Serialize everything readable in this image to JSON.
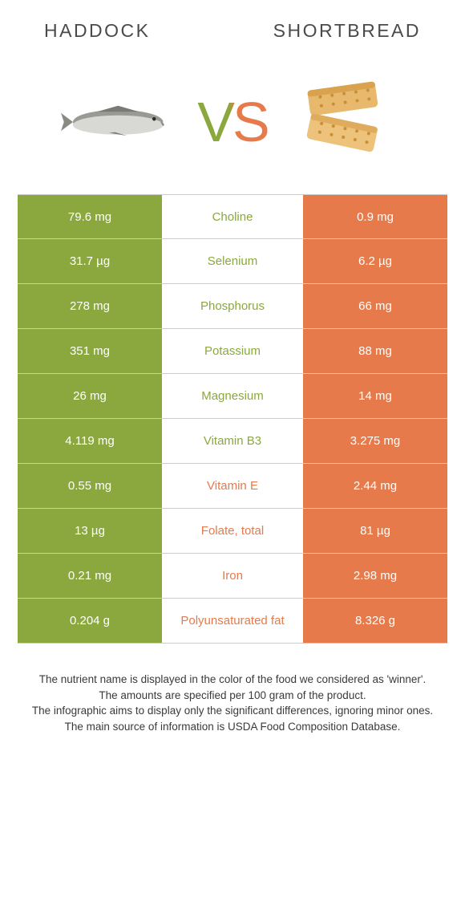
{
  "colors": {
    "left_bg": "#8aa83d",
    "right_bg": "#e67a4a",
    "mid_left_text": "#8aa83d",
    "mid_right_text": "#e67a4a",
    "cell_text": "#ffffff",
    "border": "#cccccc"
  },
  "header": {
    "left_title": "Haddock",
    "right_title": "Shortbread",
    "vs": "VS"
  },
  "rows": [
    {
      "left": "79.6 mg",
      "mid": "Choline",
      "right": "0.9 mg",
      "winner": "left"
    },
    {
      "left": "31.7 µg",
      "mid": "Selenium",
      "right": "6.2 µg",
      "winner": "left"
    },
    {
      "left": "278 mg",
      "mid": "Phosphorus",
      "right": "66 mg",
      "winner": "left"
    },
    {
      "left": "351 mg",
      "mid": "Potassium",
      "right": "88 mg",
      "winner": "left"
    },
    {
      "left": "26 mg",
      "mid": "Magnesium",
      "right": "14 mg",
      "winner": "left"
    },
    {
      "left": "4.119 mg",
      "mid": "Vitamin B3",
      "right": "3.275 mg",
      "winner": "left"
    },
    {
      "left": "0.55 mg",
      "mid": "Vitamin E",
      "right": "2.44 mg",
      "winner": "right"
    },
    {
      "left": "13 µg",
      "mid": "Folate, total",
      "right": "81 µg",
      "winner": "right"
    },
    {
      "left": "0.21 mg",
      "mid": "Iron",
      "right": "2.98 mg",
      "winner": "right"
    },
    {
      "left": "0.204 g",
      "mid": "Polyunsaturated fat",
      "right": "8.326 g",
      "winner": "right"
    }
  ],
  "footer": {
    "line1": "The nutrient name is displayed in the color of the food we considered as 'winner'.",
    "line2": "The amounts are specified per 100 gram of the product.",
    "line3": "The infographic aims to display only the significant differences, ignoring minor ones.",
    "line4": "The main source of information is USDA Food Composition Database."
  }
}
